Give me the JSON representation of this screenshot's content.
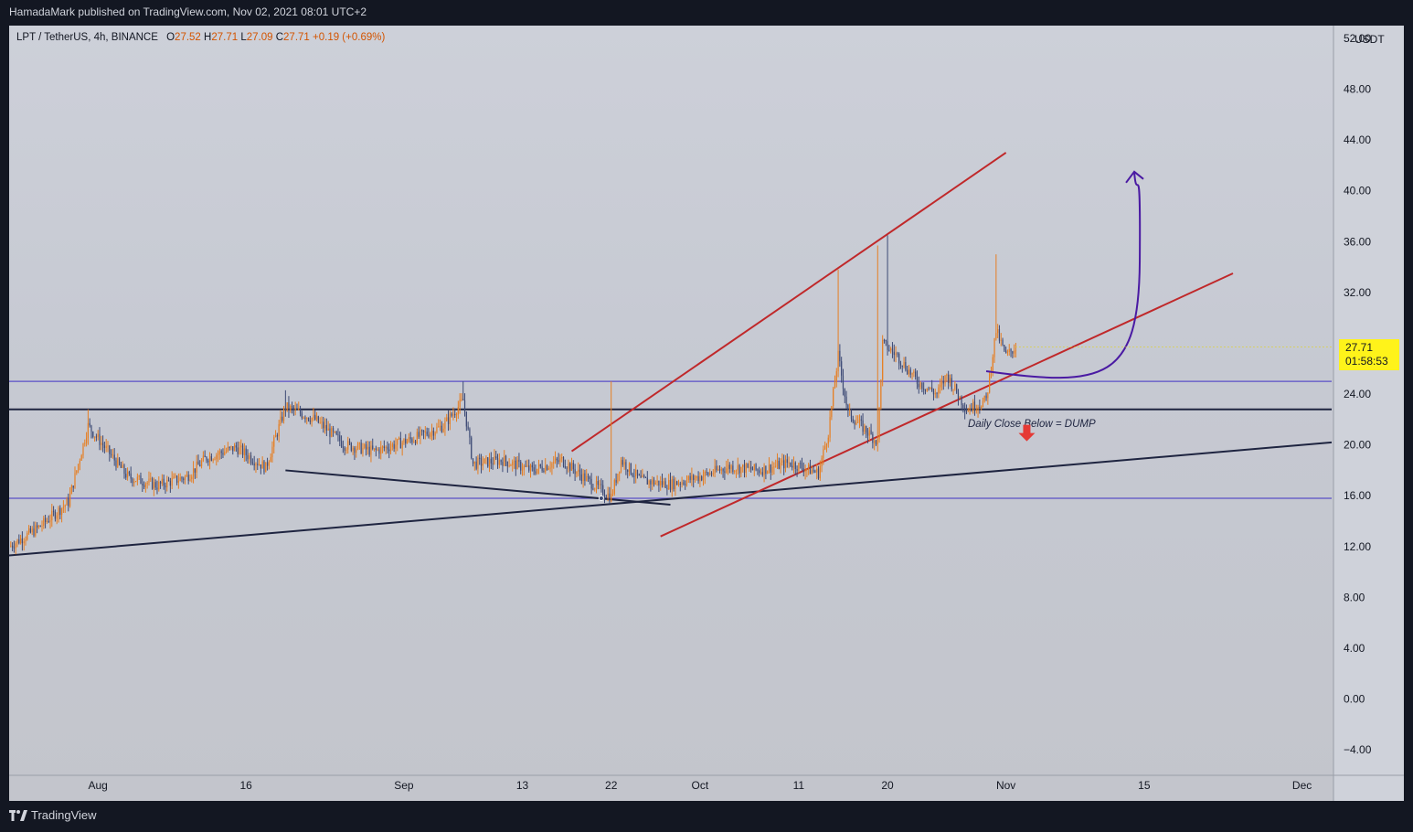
{
  "header": {
    "published_text": "HamadaMark published on TradingView.com, Nov 02, 2021 08:01 UTC+2"
  },
  "legend": {
    "symbol": "LPT / TetherUS, 4h, BINANCE",
    "open_label": "O",
    "open": "27.52",
    "high_label": "H",
    "high": "27.71",
    "low_label": "L",
    "low": "27.09",
    "close_label": "C",
    "close": "27.71",
    "change": "+0.19 (+0.69%)"
  },
  "price_tag": {
    "price": "27.71",
    "countdown": "01:58:53",
    "color": "#fff31a"
  },
  "annotation": {
    "text": "Daily Close Below = DUMP"
  },
  "footer": {
    "brand": "TradingView"
  },
  "colors": {
    "up": "#e67e22",
    "down": "#3d4a75",
    "wedge": "#c0282a",
    "trend": "#1e2440",
    "level": "#5a4fc7",
    "arrow": "#4a1aa3",
    "dump_arrow": "#e53935"
  },
  "chart_data": {
    "type": "candlestick",
    "title": "LPT / TetherUS, 4h, BINANCE",
    "y_unit": "USDT",
    "ylim": [
      -6,
      53
    ],
    "y_ticks": [
      "52.00",
      "48.00",
      "44.00",
      "40.00",
      "36.00",
      "32.00",
      "28.00",
      "24.00",
      "20.00",
      "16.00",
      "12.00",
      "8.00",
      "4.00",
      "0.00",
      "−4.00"
    ],
    "y_tick_values": [
      52,
      48,
      44,
      40,
      36,
      32,
      28,
      24,
      20,
      16,
      12,
      8,
      4,
      0,
      -4
    ],
    "x_range": [
      "2021-07-23",
      "2021-12-04"
    ],
    "x_ticks": [
      {
        "label": "Aug",
        "date": "2021-08-01"
      },
      {
        "label": "16",
        "date": "2021-08-16"
      },
      {
        "label": "Sep",
        "date": "2021-09-01"
      },
      {
        "label": "13",
        "date": "2021-09-13"
      },
      {
        "label": "22",
        "date": "2021-09-22"
      },
      {
        "label": "Oct",
        "date": "2021-10-01"
      },
      {
        "label": "11",
        "date": "2021-10-11"
      },
      {
        "label": "20",
        "date": "2021-10-20"
      },
      {
        "label": "Nov",
        "date": "2021-11-01"
      },
      {
        "label": "15",
        "date": "2021-11-15"
      },
      {
        "label": "Dec",
        "date": "2021-12-01"
      }
    ],
    "last_price": 27.71,
    "close_path": [
      [
        "2021-07-23",
        12.0
      ],
      [
        "2021-07-26",
        13.5
      ],
      [
        "2021-07-29",
        15.5
      ],
      [
        "2021-07-31",
        21.5
      ],
      [
        "2021-08-02",
        19.5
      ],
      [
        "2021-08-04",
        17.5
      ],
      [
        "2021-08-07",
        16.8
      ],
      [
        "2021-08-10",
        17.5
      ],
      [
        "2021-08-12",
        19.0
      ],
      [
        "2021-08-15",
        19.8
      ],
      [
        "2021-08-18",
        18.2
      ],
      [
        "2021-08-20",
        23.0
      ],
      [
        "2021-08-23",
        22.0
      ],
      [
        "2021-08-26",
        20.0
      ],
      [
        "2021-08-29",
        19.5
      ],
      [
        "2021-09-02",
        20.5
      ],
      [
        "2021-09-05",
        21.5
      ],
      [
        "2021-09-07",
        23.5
      ],
      [
        "2021-09-08",
        18.5
      ],
      [
        "2021-09-11",
        18.8
      ],
      [
        "2021-09-14",
        18.0
      ],
      [
        "2021-09-17",
        18.8
      ],
      [
        "2021-09-20",
        17.0
      ],
      [
        "2021-09-22",
        15.9
      ],
      [
        "2021-09-23",
        18.8
      ],
      [
        "2021-09-25",
        17.2
      ],
      [
        "2021-09-28",
        16.9
      ],
      [
        "2021-10-01",
        17.5
      ],
      [
        "2021-10-04",
        18.3
      ],
      [
        "2021-10-07",
        18.0
      ],
      [
        "2021-10-10",
        18.6
      ],
      [
        "2021-10-13",
        17.8
      ],
      [
        "2021-10-14",
        21.0
      ],
      [
        "2021-10-15",
        27.0
      ],
      [
        "2021-10-16",
        22.5
      ],
      [
        "2021-10-18",
        21.0
      ],
      [
        "2021-10-19",
        20.2
      ],
      [
        "2021-10-19T12:00",
        28.0
      ],
      [
        "2021-10-21",
        27.0
      ],
      [
        "2021-10-23",
        25.0
      ],
      [
        "2021-10-25",
        24.0
      ],
      [
        "2021-10-26",
        25.5
      ],
      [
        "2021-10-28",
        22.8
      ],
      [
        "2021-10-30",
        23.5
      ],
      [
        "2021-10-31",
        29.0
      ],
      [
        "2021-11-01",
        27.0
      ],
      [
        "2021-11-02",
        27.71
      ]
    ],
    "spikes": [
      {
        "date": "2021-07-31",
        "high": 22.8
      },
      {
        "date": "2021-08-20",
        "high": 24.3
      },
      {
        "date": "2021-09-07",
        "high": 25.0
      },
      {
        "date": "2021-09-22",
        "high": 25.0
      },
      {
        "date": "2021-10-15",
        "high": 33.8
      },
      {
        "date": "2021-10-19",
        "high": 35.7
      },
      {
        "date": "2021-10-20",
        "high": 36.5
      },
      {
        "date": "2021-10-31",
        "high": 35.0
      }
    ],
    "drawings": {
      "horizontal_levels": [
        25.0,
        22.8,
        15.8
      ],
      "trendlines": [
        {
          "name": "lower support",
          "from": [
            "2021-07-23",
            11.3
          ],
          "to": [
            "2021-12-04",
            20.2
          ]
        },
        {
          "name": "descending line",
          "from": [
            "2021-08-20",
            18.0
          ],
          "to": [
            "2021-09-28",
            15.3
          ]
        },
        {
          "name": "wedge upper",
          "from": [
            "2021-09-18",
            19.5
          ],
          "to": [
            "2021-11-01",
            43.0
          ]
        },
        {
          "name": "wedge lower",
          "from": [
            "2021-09-27",
            12.8
          ],
          "to": [
            "2021-11-24",
            33.5
          ]
        }
      ],
      "projection_arrow": {
        "start": [
          "2021-10-30",
          25.8
        ],
        "tip": [
          "2021-11-14",
          41.5
        ]
      },
      "dump_arrow": {
        "date": "2021-11-02",
        "value": 20.0
      }
    }
  }
}
